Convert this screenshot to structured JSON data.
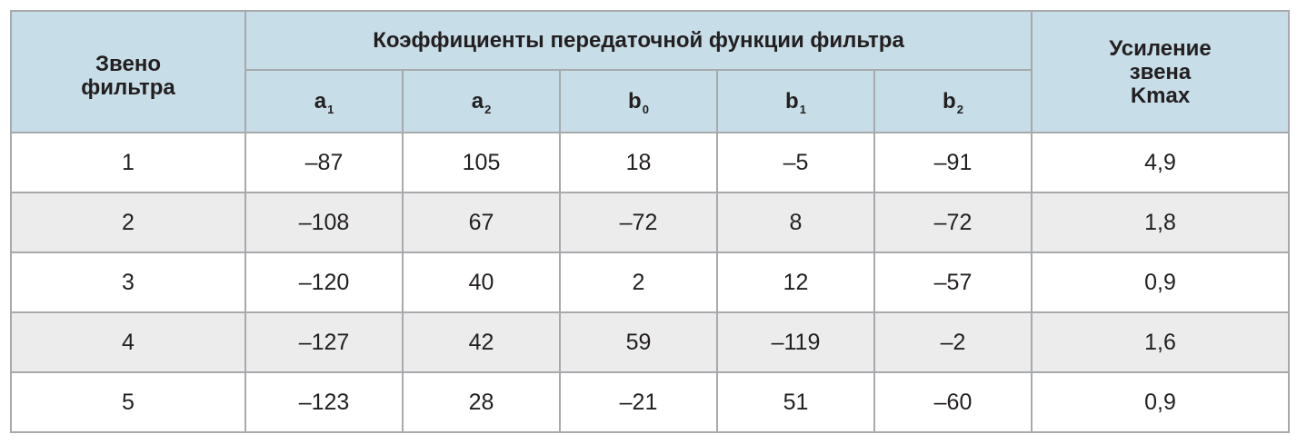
{
  "header": {
    "stage_lines": [
      "Звено",
      "фильтра"
    ],
    "coef_group": "Коэффициенты передаточной функции фильтра",
    "coefs": [
      {
        "base": "a",
        "sub": "1"
      },
      {
        "base": "a",
        "sub": "2"
      },
      {
        "base": "b",
        "sub": "0"
      },
      {
        "base": "b",
        "sub": "1"
      },
      {
        "base": "b",
        "sub": "2"
      }
    ],
    "gain_lines": [
      "Усиление",
      "звена",
      "Kmax"
    ]
  },
  "rows": [
    [
      "1",
      "–87",
      "105",
      "18",
      "–5",
      "–91",
      "4,9"
    ],
    [
      "2",
      "–108",
      "67",
      "–72",
      "8",
      "–72",
      "1,8"
    ],
    [
      "3",
      "–120",
      "40",
      "2",
      "12",
      "–57",
      "0,9"
    ],
    [
      "4",
      "–127",
      "42",
      "59",
      "–119",
      "–2",
      "1,6"
    ],
    [
      "5",
      "–123",
      "28",
      "–21",
      "51",
      "–60",
      "0,9"
    ]
  ]
}
